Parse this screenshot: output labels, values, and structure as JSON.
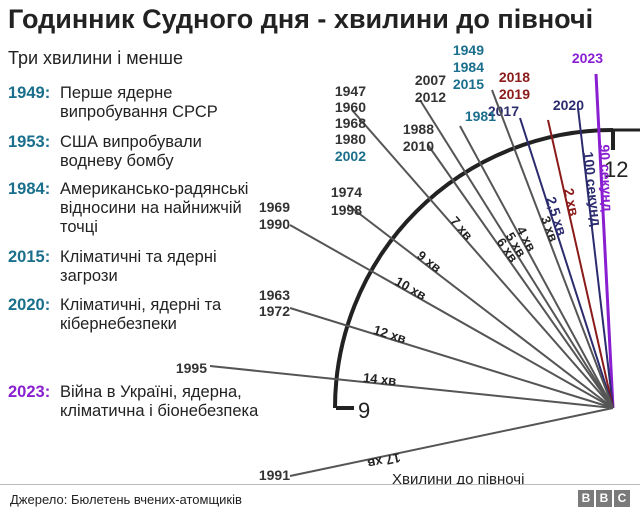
{
  "title": "Годинник Судного дня - хвилини до півночі",
  "subtitle": "Три хвилини і менше",
  "entries": [
    {
      "year": "1949:",
      "text": "Перше ядерне випробування СРСР",
      "color": "#1a6f8c"
    },
    {
      "year": "1953:",
      "text": "США випробували водневу бомбу",
      "color": "#1a6f8c"
    },
    {
      "year": "1984:",
      "text": "Американсько-радянські відносини на найнижчій точці",
      "color": "#1a6f8c"
    },
    {
      "year": "2015:",
      "text": "Кліматичні та ядерні загрози",
      "color": "#1a6f8c"
    },
    {
      "year": "2020:",
      "text": "Кліматичні, ядерні та кібернебезпеки",
      "color": "#1a6f8c"
    },
    {
      "year": "2023:",
      "text": "Війна в Україні, ядерна, кліматична і біонебезпека",
      "color": "#8a1fd1"
    }
  ],
  "clock": {
    "twelve": "12",
    "nine": "9",
    "axis_label": "Хвилини до півночі"
  },
  "hands": [
    {
      "minutes": 1.5,
      "label": "90 секунд",
      "years": [
        "2023"
      ],
      "color": "#8a1fd1"
    },
    {
      "minutes": 1.667,
      "label": "100 секунд",
      "years": [
        "2020"
      ],
      "color": "#2b2b6e"
    },
    {
      "minutes": 2,
      "label": "2 хв",
      "years": [
        "2018",
        "2019"
      ],
      "color": "#8b1a1a"
    },
    {
      "minutes": 2.5,
      "label": "2,5 хв",
      "years": [
        "2017"
      ],
      "color": "#2b2b6e"
    },
    {
      "minutes": 3,
      "label": "3 хв",
      "years": [
        "1949",
        "1984",
        "2015"
      ],
      "color": "#1a6f8c"
    },
    {
      "minutes": 4,
      "label": "4 хв",
      "years": [
        "1981"
      ],
      "color": "#1a6f8c"
    },
    {
      "minutes": 5,
      "label": "5 хв",
      "years": [
        "2007",
        "2012"
      ],
      "color": "#333333"
    },
    {
      "minutes": 6,
      "label": "6 хв",
      "years": [
        "1988",
        "2010"
      ],
      "color": "#333333"
    },
    {
      "minutes": 7,
      "label": "7 хв",
      "years": [
        "1947",
        "1960",
        "1968",
        "1980",
        "2002"
      ],
      "color": "#333333"
    },
    {
      "minutes": 9,
      "label": "9 хв",
      "years": [
        "1974",
        "1998"
      ],
      "color": "#333333"
    },
    {
      "minutes": 10,
      "label": "10 хв",
      "years": [
        "1969",
        "1990"
      ],
      "color": "#333333"
    },
    {
      "minutes": 12,
      "label": "12 хв",
      "years": [
        "1963",
        "1972"
      ],
      "color": "#333333"
    },
    {
      "minutes": 14,
      "label": "14 хв",
      "years": [
        "1995"
      ],
      "color": "#333333"
    },
    {
      "minutes": 17,
      "label": "17 хв",
      "years": [
        "1991"
      ],
      "color": "#333333"
    }
  ],
  "source": "Джерело: Бюлетень вчених-атомщиків",
  "logo": [
    "B",
    "B",
    "C"
  ]
}
